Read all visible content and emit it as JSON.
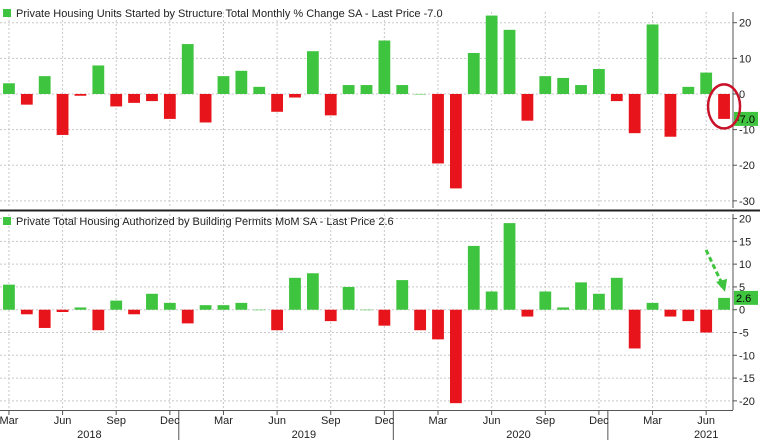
{
  "colors": {
    "positive": "#3ec43e",
    "negative": "#e8141b",
    "grid": "#c8c8c8",
    "text": "#222222",
    "annotation_circle": "#c9122a",
    "annotation_arrow": "#3ec43e",
    "last_price_bg": "#3ec43e",
    "panel_divider": "#222222"
  },
  "x_axis": {
    "month_labels": [
      {
        "index": 0,
        "label": "Mar"
      },
      {
        "index": 3,
        "label": "Jun"
      },
      {
        "index": 6,
        "label": "Sep"
      },
      {
        "index": 9,
        "label": "Dec"
      },
      {
        "index": 12,
        "label": "Mar"
      },
      {
        "index": 15,
        "label": "Jun"
      },
      {
        "index": 18,
        "label": "Sep"
      },
      {
        "index": 21,
        "label": "Dec"
      },
      {
        "index": 24,
        "label": "Mar"
      },
      {
        "index": 27,
        "label": "Jun"
      },
      {
        "index": 30,
        "label": "Sep"
      },
      {
        "index": 33,
        "label": "Dec"
      },
      {
        "index": 36,
        "label": "Mar"
      },
      {
        "index": 39,
        "label": "Jun"
      }
    ],
    "year_labels": [
      {
        "center_index": 4.5,
        "label": "2018"
      },
      {
        "center_index": 16.5,
        "label": "2019"
      },
      {
        "center_index": 28.5,
        "label": "2020"
      },
      {
        "center_index": 39,
        "label": "2021"
      }
    ],
    "year_boundaries": [
      9.5,
      21.5,
      33.5
    ]
  },
  "chart_data": [
    {
      "type": "bar",
      "title": "Private Housing Units Started by Structure Total Monthly % Change SA - Last Price -7.0",
      "last_price_label": "-7.0",
      "ylim": [
        -32,
        23
      ],
      "yticks": [
        20,
        10,
        0,
        -10,
        -20,
        -30
      ],
      "ytick_labels": [
        "20",
        "10",
        "0",
        "-10",
        "-20",
        "-30"
      ],
      "values": [
        3,
        -3,
        5,
        -11.5,
        -0.5,
        8,
        -3.5,
        -2.5,
        -2,
        -7,
        14,
        -8,
        5,
        6.5,
        2,
        -5,
        -1,
        12,
        -6,
        2.5,
        2.5,
        15,
        2.5,
        0,
        -19.5,
        -26.5,
        11.5,
        22,
        18,
        -7.5,
        5,
        4.5,
        2.5,
        7,
        -2,
        -11,
        19.5,
        -12,
        2,
        6,
        -7
      ]
    },
    {
      "type": "bar",
      "title": "Private Total Housing Authorized by Building Permits MoM SA - Last Price 2.6",
      "last_price_label": "2.6",
      "ylim": [
        -22,
        21
      ],
      "yticks": [
        20,
        15,
        10,
        5,
        0,
        -5,
        -10,
        -15,
        -20
      ],
      "ytick_labels": [
        "20",
        "15",
        "10",
        "5",
        "0",
        "-5",
        "-10",
        "-15",
        "-20"
      ],
      "values": [
        5.5,
        -1,
        -4,
        -0.5,
        0.5,
        -4.5,
        2,
        -1,
        3.5,
        1.5,
        -3,
        1,
        1,
        1.5,
        0,
        -4.5,
        7,
        8,
        -2.5,
        5,
        0,
        -3.5,
        6.5,
        -4.5,
        -6.5,
        -20.5,
        14,
        4,
        19,
        -1.5,
        4,
        0.5,
        6,
        3.5,
        7,
        -8.5,
        1.5,
        -1.5,
        -2.5,
        -5,
        2.6
      ]
    }
  ]
}
